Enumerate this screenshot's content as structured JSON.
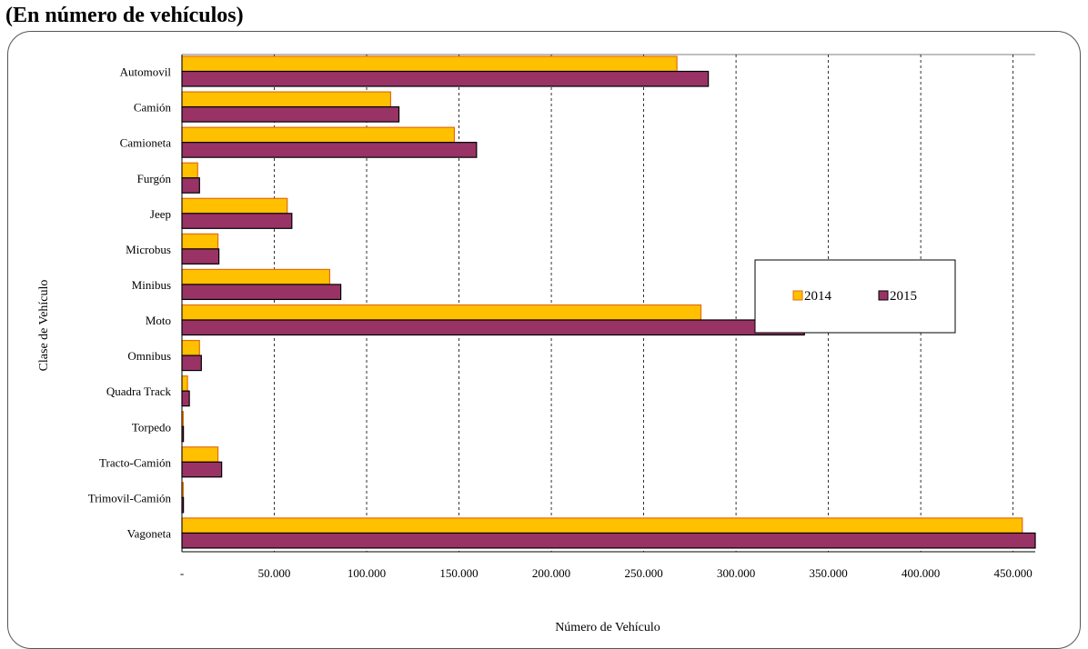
{
  "page": {
    "title": "(En número de vehículos)"
  },
  "colors": {
    "series_2014_fill": "#FFC000",
    "series_2014_stroke": "#E46C0A",
    "series_2015_fill": "#993366",
    "series_2015_stroke": "#000000",
    "grid": "#000000",
    "frame": "#555555"
  },
  "chart_data": {
    "type": "bar",
    "orientation": "horizontal",
    "title": "",
    "xlabel": "Número de Vehículo",
    "ylabel": "Clase de Vehículo",
    "xlim": [
      0,
      462000
    ],
    "x_ticks": [
      0,
      50000,
      100000,
      150000,
      200000,
      250000,
      300000,
      350000,
      400000,
      450000
    ],
    "x_tick_labels": [
      "-",
      "50.000",
      "100.000",
      "150.000",
      "200.000",
      "250.000",
      "300.000",
      "350.000",
      "400.000",
      "450.000"
    ],
    "grid": "vertical dashed",
    "legend_position": "right-center",
    "categories": [
      "Automovil",
      "Camión",
      "Camioneta",
      "Furgón",
      "Jeep",
      "Microbus",
      "Minibus",
      "Moto",
      "Omnibus",
      "Quadra Track",
      "Torpedo",
      "Tracto-Camión",
      "Trimovil-Camión",
      "Vagoneta"
    ],
    "series": [
      {
        "name": "2014",
        "values": [
          268000,
          113000,
          147500,
          8500,
          57000,
          19500,
          80000,
          281000,
          9500,
          3000,
          700,
          19500,
          700,
          455000
        ]
      },
      {
        "name": "2015",
        "values": [
          285000,
          117500,
          159500,
          9500,
          59500,
          20000,
          86000,
          337000,
          10500,
          4000,
          800,
          21500,
          800,
          462000
        ]
      }
    ]
  }
}
